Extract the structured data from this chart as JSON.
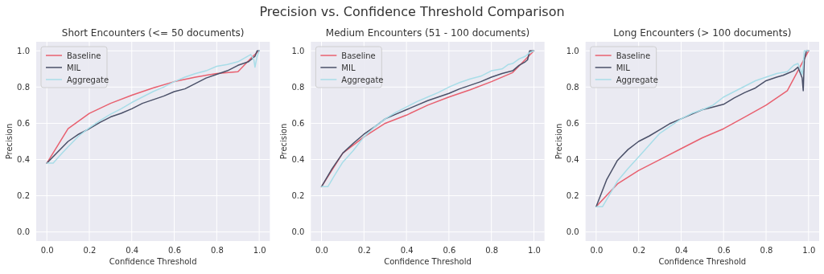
{
  "chart_data": [
    {
      "type": "line",
      "title": "Short Encounters (<= 50 documents)",
      "xlabel": "Confidence Threshold",
      "ylabel": "Precision",
      "annotations": [
        "Precision vs. Confidence Threshold Comparison"
      ],
      "xlim": [
        -0.05,
        1.05
      ],
      "ylim": [
        -0.05,
        1.05
      ],
      "xticks": [
        {
          "value": 0,
          "label": "0.0"
        },
        {
          "value": 0.2,
          "label": "0.2"
        },
        {
          "value": 0.4,
          "label": "0.4"
        },
        {
          "value": 0.6,
          "label": "0.6"
        },
        {
          "value": 0.8,
          "label": "0.8"
        },
        {
          "value": 1,
          "label": "1.0"
        }
      ],
      "yticks": [
        {
          "value": 0,
          "label": "0.0"
        },
        {
          "value": 0.2,
          "label": "0.2"
        },
        {
          "value": 0.4,
          "label": "0.4"
        },
        {
          "value": 0.6,
          "label": "0.6"
        },
        {
          "value": 0.8,
          "label": "0.8"
        },
        {
          "value": 1,
          "label": "1.0"
        }
      ],
      "grid": true,
      "legend": "top left",
      "marker": "none",
      "line_style": "solid",
      "series": [
        {
          "name": "Baseline",
          "color": "#e8606f",
          "x": [
            0,
            0.1,
            0.2,
            0.3,
            0.4,
            0.5,
            0.6,
            0.7,
            0.8,
            0.9,
            0.97,
            1
          ],
          "values": [
            0.38,
            0.57,
            0.655,
            0.71,
            0.755,
            0.795,
            0.83,
            0.855,
            0.875,
            0.885,
            0.97,
            1.0
          ]
        },
        {
          "name": "MIL",
          "color": "#4a5068",
          "x": [
            0,
            0.05,
            0.1,
            0.15,
            0.2,
            0.25,
            0.3,
            0.35,
            0.4,
            0.45,
            0.5,
            0.55,
            0.6,
            0.65,
            0.7,
            0.75,
            0.8,
            0.85,
            0.9,
            0.95,
            0.98,
            0.99,
            1
          ],
          "values": [
            0.38,
            0.44,
            0.5,
            0.54,
            0.57,
            0.605,
            0.635,
            0.655,
            0.68,
            0.71,
            0.73,
            0.75,
            0.775,
            0.79,
            0.82,
            0.85,
            0.87,
            0.89,
            0.92,
            0.94,
            0.97,
            1.0,
            1.0
          ]
        },
        {
          "name": "Aggregate",
          "color": "#a8dde8",
          "x": [
            0,
            0.03,
            0.06,
            0.1,
            0.15,
            0.2,
            0.25,
            0.3,
            0.35,
            0.4,
            0.45,
            0.5,
            0.55,
            0.6,
            0.65,
            0.7,
            0.75,
            0.8,
            0.85,
            0.9,
            0.93,
            0.96,
            0.975,
            0.98,
            0.99,
            1
          ],
          "values": [
            0.38,
            0.38,
            0.42,
            0.47,
            0.53,
            0.575,
            0.615,
            0.65,
            0.68,
            0.715,
            0.745,
            0.775,
            0.8,
            0.83,
            0.855,
            0.875,
            0.89,
            0.915,
            0.925,
            0.94,
            0.96,
            0.98,
            0.95,
            0.91,
            0.97,
            1.0
          ]
        }
      ]
    },
    {
      "type": "line",
      "title": "Medium Encounters (51 - 100 documents)",
      "xlabel": "Confidence Threshold",
      "ylabel": "Precision",
      "xlim": [
        -0.05,
        1.05
      ],
      "ylim": [
        -0.05,
        1.05
      ],
      "xticks": [
        {
          "value": 0,
          "label": "0.0"
        },
        {
          "value": 0.2,
          "label": "0.2"
        },
        {
          "value": 0.4,
          "label": "0.4"
        },
        {
          "value": 0.6,
          "label": "0.6"
        },
        {
          "value": 0.8,
          "label": "0.8"
        },
        {
          "value": 1,
          "label": "1.0"
        }
      ],
      "yticks": [
        {
          "value": 0,
          "label": "0.0"
        },
        {
          "value": 0.2,
          "label": "0.2"
        },
        {
          "value": 0.4,
          "label": "0.4"
        },
        {
          "value": 0.6,
          "label": "0.6"
        },
        {
          "value": 0.8,
          "label": "0.8"
        },
        {
          "value": 1,
          "label": "1.0"
        }
      ],
      "grid": true,
      "legend": "top left",
      "marker": "none",
      "line_style": "solid",
      "series": [
        {
          "name": "Baseline",
          "color": "#e8606f",
          "x": [
            0,
            0.1,
            0.2,
            0.3,
            0.4,
            0.5,
            0.6,
            0.7,
            0.8,
            0.9,
            1
          ],
          "values": [
            0.25,
            0.435,
            0.525,
            0.6,
            0.645,
            0.7,
            0.745,
            0.785,
            0.83,
            0.88,
            1.0
          ]
        },
        {
          "name": "MIL",
          "color": "#4a5068",
          "x": [
            0,
            0.05,
            0.1,
            0.15,
            0.2,
            0.25,
            0.3,
            0.35,
            0.4,
            0.45,
            0.5,
            0.55,
            0.6,
            0.65,
            0.7,
            0.75,
            0.8,
            0.85,
            0.9,
            0.93,
            0.96,
            0.97,
            0.98,
            0.99,
            1
          ],
          "values": [
            0.25,
            0.35,
            0.435,
            0.49,
            0.54,
            0.58,
            0.625,
            0.65,
            0.675,
            0.7,
            0.725,
            0.745,
            0.765,
            0.79,
            0.81,
            0.83,
            0.855,
            0.875,
            0.89,
            0.92,
            0.94,
            0.95,
            1.0,
            1.0,
            1.0
          ]
        },
        {
          "name": "Aggregate",
          "color": "#a8dde8",
          "x": [
            0,
            0.03,
            0.06,
            0.1,
            0.15,
            0.2,
            0.25,
            0.3,
            0.35,
            0.4,
            0.45,
            0.5,
            0.55,
            0.6,
            0.65,
            0.7,
            0.75,
            0.8,
            0.85,
            0.88,
            0.9,
            0.93,
            0.96,
            0.98,
            1
          ],
          "values": [
            0.25,
            0.25,
            0.31,
            0.385,
            0.45,
            0.525,
            0.58,
            0.625,
            0.66,
            0.69,
            0.72,
            0.745,
            0.77,
            0.8,
            0.825,
            0.845,
            0.86,
            0.89,
            0.9,
            0.925,
            0.93,
            0.955,
            0.97,
            0.99,
            1.0
          ]
        }
      ]
    },
    {
      "type": "line",
      "title": "Long Encounters (> 100 documents)",
      "xlabel": "Confidence Threshold",
      "ylabel": "Precision",
      "xlim": [
        -0.05,
        1.05
      ],
      "ylim": [
        -0.05,
        1.05
      ],
      "xticks": [
        {
          "value": 0,
          "label": "0.0"
        },
        {
          "value": 0.2,
          "label": "0.2"
        },
        {
          "value": 0.4,
          "label": "0.4"
        },
        {
          "value": 0.6,
          "label": "0.6"
        },
        {
          "value": 0.8,
          "label": "0.8"
        },
        {
          "value": 1,
          "label": "1.0"
        }
      ],
      "yticks": [
        {
          "value": 0,
          "label": "0.0"
        },
        {
          "value": 0.2,
          "label": "0.2"
        },
        {
          "value": 0.4,
          "label": "0.4"
        },
        {
          "value": 0.6,
          "label": "0.6"
        },
        {
          "value": 0.8,
          "label": "0.8"
        },
        {
          "value": 1,
          "label": "1.0"
        }
      ],
      "grid": true,
      "legend": "top left",
      "marker": "none",
      "line_style": "solid",
      "series": [
        {
          "name": "Baseline",
          "color": "#e8606f",
          "x": [
            0,
            0.1,
            0.2,
            0.3,
            0.4,
            0.5,
            0.6,
            0.7,
            0.8,
            0.9,
            1
          ],
          "values": [
            0.14,
            0.265,
            0.34,
            0.4,
            0.46,
            0.52,
            0.57,
            0.635,
            0.7,
            0.78,
            1.0
          ]
        },
        {
          "name": "MIL",
          "color": "#4a5068",
          "x": [
            0,
            0.05,
            0.1,
            0.15,
            0.2,
            0.25,
            0.3,
            0.35,
            0.4,
            0.45,
            0.5,
            0.55,
            0.6,
            0.65,
            0.7,
            0.75,
            0.8,
            0.85,
            0.88,
            0.9,
            0.93,
            0.95,
            0.96,
            0.97,
            0.975,
            0.98,
            0.99,
            1
          ],
          "values": [
            0.14,
            0.29,
            0.395,
            0.455,
            0.5,
            0.53,
            0.565,
            0.6,
            0.625,
            0.65,
            0.675,
            0.69,
            0.705,
            0.74,
            0.77,
            0.795,
            0.835,
            0.855,
            0.865,
            0.875,
            0.89,
            0.91,
            0.88,
            0.85,
            0.78,
            0.95,
            1.0,
            1.0
          ]
        },
        {
          "name": "Aggregate",
          "color": "#a8dde8",
          "x": [
            0,
            0.03,
            0.06,
            0.1,
            0.15,
            0.2,
            0.25,
            0.3,
            0.35,
            0.4,
            0.45,
            0.5,
            0.55,
            0.6,
            0.65,
            0.7,
            0.75,
            0.8,
            0.85,
            0.9,
            0.93,
            0.95,
            0.97,
            0.98,
            1
          ],
          "values": [
            0.14,
            0.14,
            0.2,
            0.28,
            0.35,
            0.415,
            0.48,
            0.545,
            0.585,
            0.625,
            0.655,
            0.675,
            0.7,
            0.745,
            0.775,
            0.805,
            0.835,
            0.855,
            0.875,
            0.885,
            0.92,
            0.93,
            0.87,
            1.0,
            1.0
          ]
        }
      ]
    }
  ]
}
